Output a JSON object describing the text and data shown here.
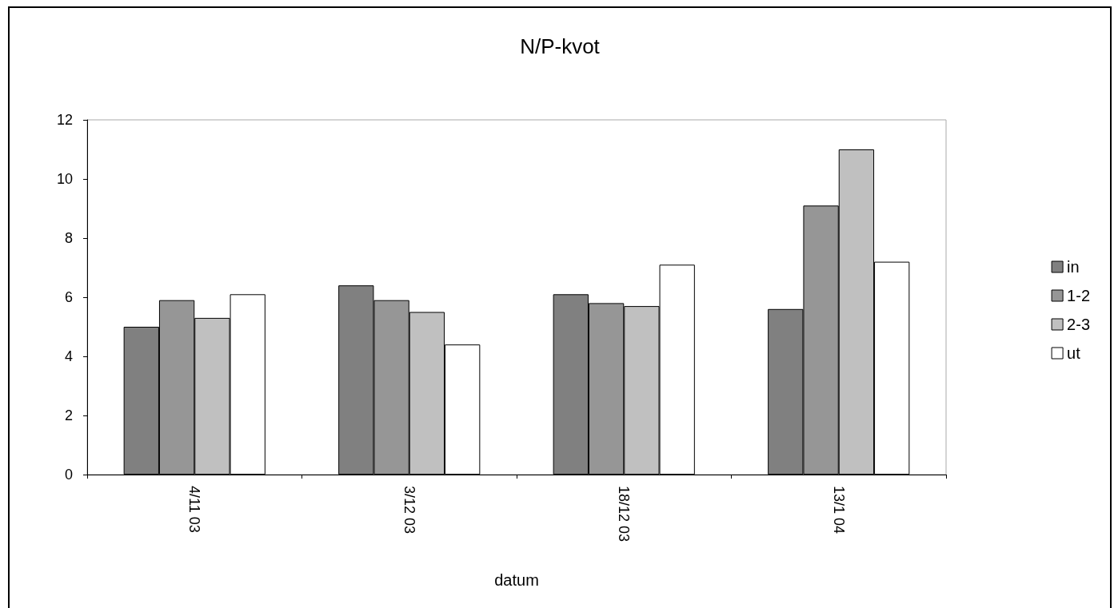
{
  "chart_data": {
    "type": "bar",
    "title": "N/P-kvot",
    "xlabel": "datum",
    "categories": [
      "4/11 03",
      "3/12 03",
      "18/12 03",
      "13/1 04"
    ],
    "series": [
      {
        "name": "in",
        "color": "#808080",
        "values": [
          5.0,
          6.4,
          6.1,
          5.6
        ]
      },
      {
        "name": "1-2",
        "color": "#969696",
        "values": [
          5.9,
          5.9,
          5.8,
          9.1
        ]
      },
      {
        "name": "2-3",
        "color": "#c0c0c0",
        "values": [
          5.3,
          5.5,
          5.7,
          11.0
        ]
      },
      {
        "name": "ut",
        "color": "#ffffff",
        "values": [
          6.1,
          4.4,
          7.1,
          7.2
        ]
      }
    ],
    "ylim": [
      0,
      12
    ],
    "yticks": [
      0,
      2,
      4,
      6,
      8,
      10,
      12
    ],
    "grid": false,
    "legend": "right"
  }
}
